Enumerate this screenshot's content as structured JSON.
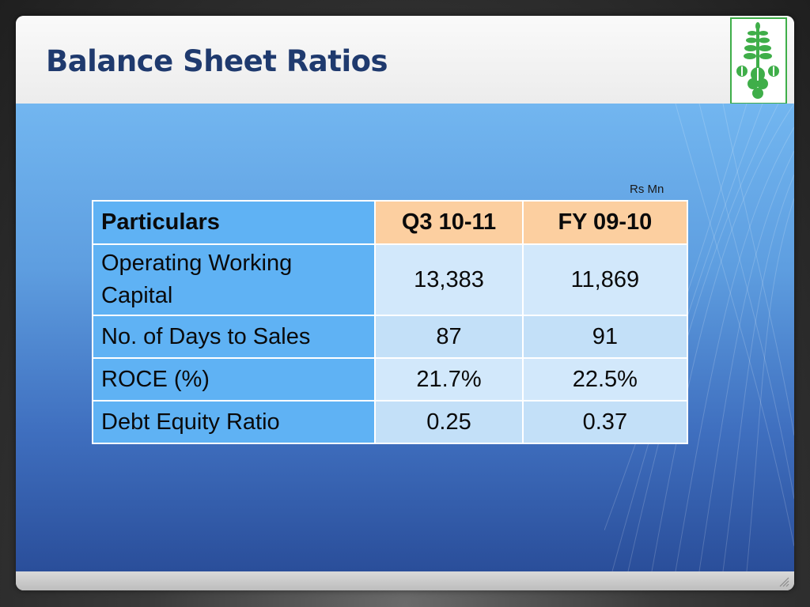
{
  "slide": {
    "title": "Balance Sheet Ratios",
    "unit_label": "Rs Mn"
  },
  "table": {
    "headers": [
      "Particulars",
      "Q3 10-11",
      "FY 09-10"
    ],
    "rows": [
      {
        "label": "Operating Working Capital",
        "q3_10_11": "13,383",
        "fy_09_10": "11,869"
      },
      {
        "label": "No. of Days to Sales",
        "q3_10_11": "87",
        "fy_09_10": "91"
      },
      {
        "label": "ROCE (%)",
        "q3_10_11": "21.7%",
        "fy_09_10": "22.5%"
      },
      {
        "label": "Debt Equity Ratio",
        "q3_10_11": "0.25",
        "fy_09_10": "0.37"
      }
    ]
  },
  "colors": {
    "title": "#1f3a6e",
    "header_particulars": "#5fb2f4",
    "header_period": "#fccfa0",
    "value_cell": "#d2e8fb",
    "logo_green": "#3fae49"
  },
  "icons": {
    "logo": "green-plant-logo-icon",
    "resize": "resize-grip-icon"
  }
}
